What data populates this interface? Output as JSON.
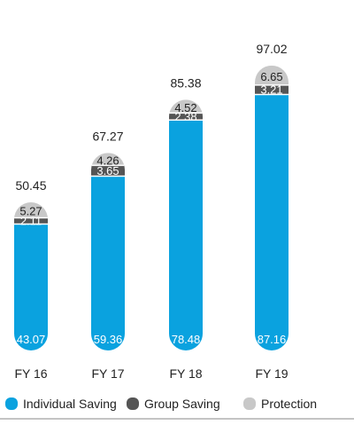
{
  "chart_data": {
    "type": "bar",
    "stacked": true,
    "title": "",
    "xlabel": "",
    "ylabel": "",
    "ylim": [
      0,
      100
    ],
    "grid": false,
    "legend_position": "bottom",
    "categories": [
      "FY 16",
      "FY 17",
      "FY 18",
      "FY 19"
    ],
    "totals": [
      "50.45",
      "67.27",
      "85.38",
      "97.02"
    ],
    "series": [
      {
        "name": "Individual Saving",
        "color": "#0aa2df",
        "values": [
          43.07,
          59.36,
          78.48,
          87.16
        ],
        "labels": [
          "43.07",
          "59.36",
          "78.48",
          "87.16"
        ]
      },
      {
        "name": "Group Saving",
        "color": "#555555",
        "values": [
          2.11,
          3.65,
          2.38,
          3.21
        ],
        "labels": [
          "2.11",
          "3.65",
          "2.38",
          "3.21"
        ]
      },
      {
        "name": "Protection",
        "color": "#c8c8c8",
        "values": [
          5.27,
          4.26,
          4.52,
          6.65
        ],
        "labels": [
          "5.27",
          "4.26",
          "4.52",
          "6.65"
        ]
      }
    ]
  }
}
